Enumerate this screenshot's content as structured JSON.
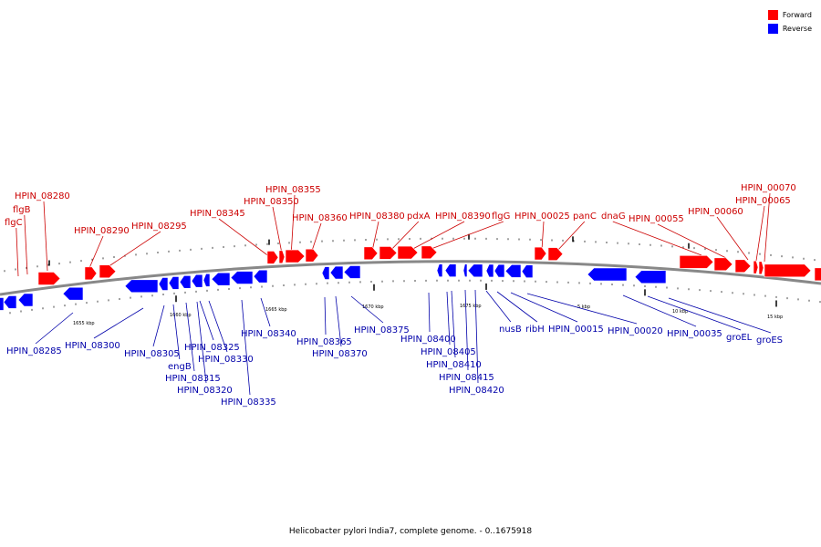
{
  "legend": [
    {
      "label": "Forward",
      "color": "#ff0000"
    },
    {
      "label": "Reverse",
      "color": "#0000ff"
    }
  ],
  "caption": "Helicobacter pylori India7, complete genome. - 0..1675918",
  "colors": {
    "forward": "#ff0000",
    "reverse": "#0000ff",
    "backbone": "#888888",
    "forward_label": "#cc0000",
    "reverse_label": "#0000aa",
    "ticks": "#000000"
  },
  "scale_labels": [
    "1655 kbp",
    "1660 kbp",
    "1665 kbp",
    "1670 kbp",
    "1675 kbp",
    "5 kbp",
    "10 kbp",
    "15 kbp"
  ],
  "forward_labels": [
    "flgC",
    "flgB",
    "HPIN_08280",
    "HPIN_08290",
    "HPIN_08295",
    "HPIN_08345",
    "HPIN_08350",
    "HPIN_08355",
    "HPIN_08360",
    "HPIN_08380",
    "pdxA",
    "HPIN_08390",
    "flgG",
    "HPIN_00025",
    "panC",
    "dnaG",
    "HPIN_00055",
    "HPIN_00060",
    "HPIN_00065",
    "HPIN_00070"
  ],
  "reverse_labels": [
    "HPIN_08285",
    "HPIN_08300",
    "HPIN_08305",
    "engB",
    "HPIN_08315",
    "HPIN_08320",
    "HPIN_08325",
    "HPIN_08330",
    "HPIN_08335",
    "HPIN_08340",
    "HPIN_08365",
    "HPIN_08370",
    "HPIN_08375",
    "HPIN_08400",
    "HPIN_08405",
    "HPIN_08410",
    "HPIN_08415",
    "HPIN_08420",
    "nusB",
    "ribH",
    "HPIN_00015",
    "HPIN_00020",
    "HPIN_00035",
    "groEL",
    "groES"
  ]
}
